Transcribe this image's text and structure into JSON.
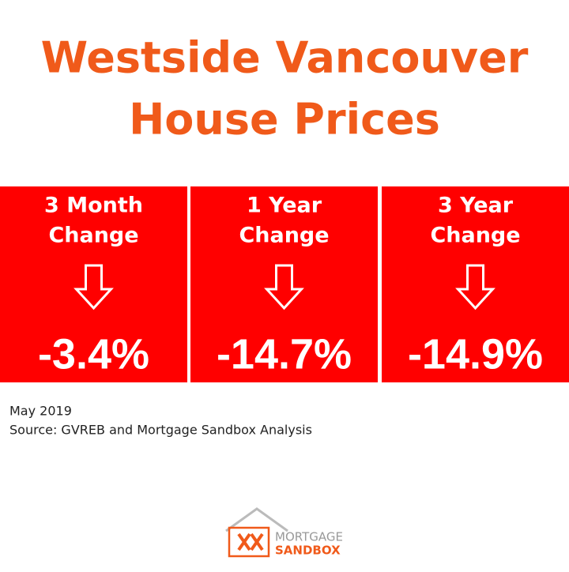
{
  "header": {
    "title_lines": [
      "Westside Vancouver",
      "House Prices"
    ]
  },
  "cards": [
    {
      "label_lines": [
        "3 Month",
        "Change"
      ],
      "value": "-3.4%"
    },
    {
      "label_lines": [
        "1 Year",
        "Change"
      ],
      "value": "-14.7%"
    },
    {
      "label_lines": [
        "3 Year",
        "Change"
      ],
      "value": "-14.9%"
    }
  ],
  "footer": {
    "date": "May 2019",
    "source": "Source: GVREB and Mortgage Sandbox Analysis"
  },
  "logo": {
    "line1": "MORTGAGE",
    "line2": "SANDBOX"
  }
}
